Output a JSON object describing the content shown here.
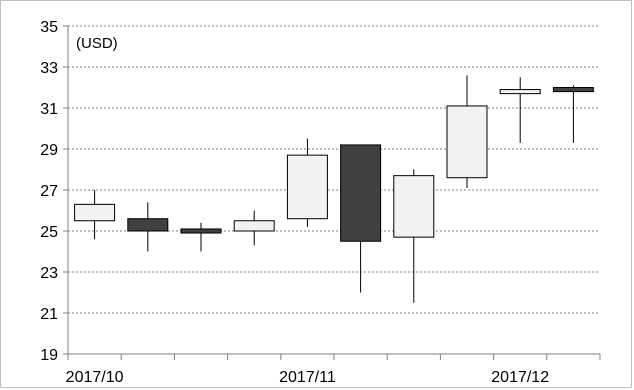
{
  "chart_data": {
    "type": "candlestick",
    "unit_label": "(USD)",
    "y_ticks": [
      "35",
      "33",
      "31",
      "29",
      "27",
      "25",
      "23",
      "21",
      "19"
    ],
    "x_tick_labels": [
      "2017/10",
      "2017/11",
      "2017/12"
    ],
    "ylim": [
      19,
      35
    ],
    "grid": true,
    "colors": {
      "bullish": "#f2f2f2",
      "bearish": "#404040",
      "wick": "#000000",
      "grid": "#808080"
    },
    "candles": [
      {
        "open": 25.5,
        "high": 27.0,
        "low": 24.6,
        "close": 26.3
      },
      {
        "open": 25.6,
        "high": 26.4,
        "low": 24.0,
        "close": 25.0
      },
      {
        "open": 25.1,
        "high": 25.4,
        "low": 24.0,
        "close": 24.9
      },
      {
        "open": 25.0,
        "high": 26.0,
        "low": 24.3,
        "close": 25.5
      },
      {
        "open": 25.6,
        "high": 29.5,
        "low": 25.2,
        "close": 28.7
      },
      {
        "open": 29.2,
        "high": 29.2,
        "low": 22.0,
        "close": 24.5
      },
      {
        "open": 24.7,
        "high": 28.0,
        "low": 21.5,
        "close": 27.7
      },
      {
        "open": 27.6,
        "high": 32.6,
        "low": 27.1,
        "close": 31.1
      },
      {
        "open": 31.7,
        "high": 32.5,
        "low": 29.3,
        "close": 31.9
      },
      {
        "open": 32.0,
        "high": 32.1,
        "low": 29.3,
        "close": 31.8
      }
    ]
  }
}
